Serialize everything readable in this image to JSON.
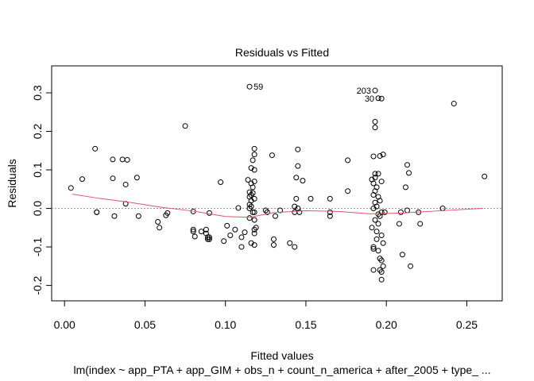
{
  "chart_data": {
    "type": "scatter",
    "title": "Residuals vs Fitted",
    "xlabel": "Fitted values",
    "ylabel": "Residuals",
    "subtitle": "lm(index ~ app_PTA + app_GIM + obs_n + count_n_america + after_2005 + type_ ...",
    "xlim": [
      -0.008,
      0.272
    ],
    "ylim": [
      -0.24,
      0.37
    ],
    "x_ticks": [
      0.0,
      0.05,
      0.1,
      0.15,
      0.2,
      0.25
    ],
    "x_tick_labels": [
      "0.00",
      "0.05",
      "0.10",
      "0.15",
      "0.20",
      "0.25"
    ],
    "y_ticks": [
      -0.2,
      -0.1,
      0.0,
      0.1,
      0.2,
      0.3
    ],
    "y_tick_labels": [
      "-0.2",
      "-0.1",
      "0.0",
      "0.1",
      "0.2",
      "0.3"
    ],
    "reference_line": {
      "y": 0,
      "color": "#999999",
      "style": "dotted"
    },
    "smoother": {
      "color": "#df536b",
      "x": [
        0.005,
        0.02,
        0.04,
        0.06,
        0.08,
        0.1,
        0.115,
        0.13,
        0.15,
        0.17,
        0.19,
        0.21,
        0.23,
        0.26
      ],
      "y": [
        0.037,
        0.027,
        0.016,
        0.003,
        -0.007,
        -0.021,
        -0.023,
        -0.011,
        -0.006,
        -0.008,
        -0.014,
        -0.012,
        -0.007,
        0.0
      ]
    },
    "labeled_points": [
      {
        "label": "59",
        "x": 0.115,
        "y": 0.316
      },
      {
        "label": "203",
        "x": 0.193,
        "y": 0.306
      },
      {
        "label": "30",
        "x": 0.195,
        "y": 0.286
      }
    ],
    "points": {
      "x": [
        0.004,
        0.011,
        0.019,
        0.02,
        0.02,
        0.03,
        0.03,
        0.031,
        0.036,
        0.038,
        0.038,
        0.039,
        0.045,
        0.046,
        0.058,
        0.059,
        0.063,
        0.064,
        0.075,
        0.08,
        0.08,
        0.08,
        0.081,
        0.085,
        0.088,
        0.088,
        0.089,
        0.089,
        0.09,
        0.09,
        0.09,
        0.097,
        0.099,
        0.101,
        0.103,
        0.106,
        0.108,
        0.11,
        0.11,
        0.112,
        0.114,
        0.115,
        0.115,
        0.115,
        0.115,
        0.115,
        0.116,
        0.116,
        0.116,
        0.116,
        0.116,
        0.116,
        0.117,
        0.117,
        0.117,
        0.117,
        0.118,
        0.118,
        0.118,
        0.118,
        0.118,
        0.118,
        0.118,
        0.118,
        0.118,
        0.118,
        0.119,
        0.125,
        0.126,
        0.129,
        0.13,
        0.13,
        0.131,
        0.134,
        0.14,
        0.143,
        0.143,
        0.143,
        0.144,
        0.144,
        0.145,
        0.145,
        0.145,
        0.146,
        0.148,
        0.153,
        0.165,
        0.165,
        0.165,
        0.176,
        0.176,
        0.191,
        0.191,
        0.192,
        0.192,
        0.192,
        0.192,
        0.192,
        0.192,
        0.192,
        0.193,
        0.193,
        0.193,
        0.193,
        0.193,
        0.193,
        0.193,
        0.194,
        0.194,
        0.194,
        0.194,
        0.195,
        0.195,
        0.195,
        0.195,
        0.195,
        0.196,
        0.196,
        0.196,
        0.196,
        0.196,
        0.197,
        0.197,
        0.197,
        0.197,
        0.197,
        0.197,
        0.197,
        0.198,
        0.198,
        0.198,
        0.199,
        0.208,
        0.209,
        0.21,
        0.212,
        0.213,
        0.213,
        0.214,
        0.215,
        0.22,
        0.221,
        0.235,
        0.242,
        0.261
      ],
      "y": [
        0.053,
        0.076,
        0.155,
        -0.01,
        -0.01,
        0.127,
        0.078,
        -0.02,
        0.127,
        0.062,
        0.012,
        0.126,
        0.08,
        -0.02,
        -0.035,
        -0.05,
        -0.018,
        -0.012,
        0.214,
        -0.008,
        -0.055,
        -0.06,
        -0.073,
        -0.06,
        -0.055,
        -0.065,
        -0.075,
        -0.08,
        -0.075,
        -0.08,
        -0.012,
        0.068,
        -0.085,
        -0.045,
        -0.07,
        -0.055,
        0.001,
        -0.1,
        -0.075,
        -0.062,
        0.074,
        0.042,
        0.03,
        0.01,
        0.0,
        -0.025,
        0.105,
        0.065,
        0.035,
        0.02,
        0.005,
        -0.09,
        0.125,
        0.055,
        0.04,
        -0.01,
        0.155,
        0.14,
        0.1,
        0.07,
        0.025,
        -0.01,
        -0.03,
        -0.055,
        -0.065,
        -0.095,
        -0.05,
        -0.005,
        -0.01,
        0.138,
        -0.08,
        -0.095,
        -0.02,
        -0.005,
        -0.09,
        0.005,
        -0.01,
        -0.1,
        0.08,
        0.025,
        0.153,
        0.11,
        0.0,
        -0.01,
        0.072,
        0.025,
        0.025,
        -0.01,
        -0.02,
        0.125,
        0.045,
        0.075,
        -0.05,
        0.135,
        0.065,
        0.035,
        0.0,
        -0.1,
        -0.105,
        -0.16,
        0.225,
        0.21,
        0.09,
        0.08,
        0.045,
        0.015,
        -0.03,
        0.055,
        0.005,
        -0.06,
        -0.08,
        0.09,
        0.03,
        -0.015,
        -0.04,
        -0.11,
        0.136,
        0.02,
        -0.02,
        -0.13,
        -0.16,
        0.285,
        0.07,
        -0.01,
        -0.07,
        -0.135,
        -0.165,
        -0.185,
        0.14,
        -0.09,
        -0.15,
        -0.01,
        -0.04,
        -0.01,
        -0.12,
        0.055,
        0.113,
        -0.005,
        0.092,
        -0.15,
        -0.01,
        -0.04,
        0.0,
        0.272,
        0.083
      ]
    }
  }
}
